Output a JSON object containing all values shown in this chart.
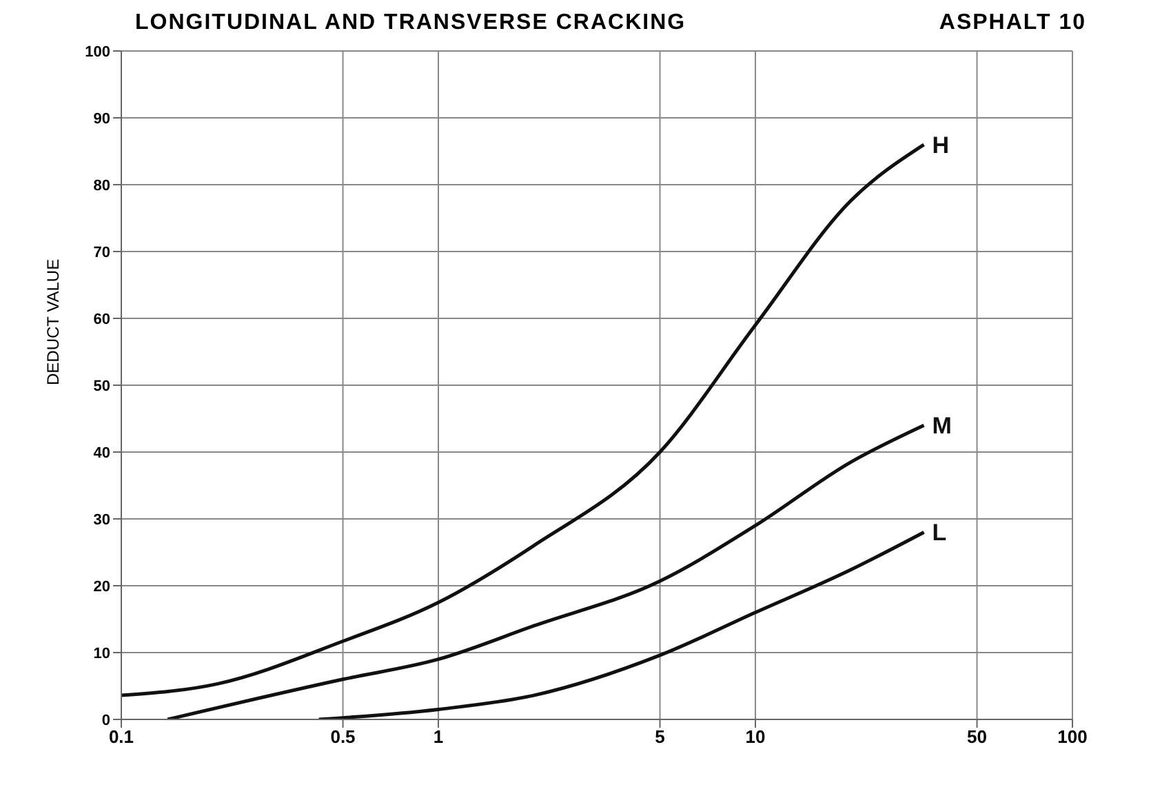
{
  "chart_data": {
    "type": "line",
    "title": "LONGITUDINAL AND TRANSVERSE CRACKING",
    "subtitle": "ASPHALT 10",
    "ylabel": "DEDUCT VALUE",
    "log": "x",
    "xlim": [
      0.1,
      100
    ],
    "xticks": [
      0.1,
      0.5,
      1,
      5,
      10,
      50,
      100
    ],
    "ylim": [
      0,
      100
    ],
    "yticks": [
      0,
      10,
      20,
      30,
      40,
      50,
      60,
      70,
      80,
      90,
      100
    ],
    "grid": true,
    "legend": false,
    "marker": "none",
    "line_style": "solid",
    "series": [
      {
        "name": "H",
        "color": "#111111",
        "x": [
          0.1,
          0.2,
          0.5,
          1,
          2,
          5,
          10,
          20,
          34
        ],
        "values": [
          3.6,
          5.3,
          11.7,
          17.5,
          26,
          40,
          59,
          77.6,
          86
        ]
      },
      {
        "name": "M",
        "color": "#111111",
        "x": [
          0.14,
          0.5,
          1,
          2,
          5,
          10,
          20,
          34
        ],
        "values": [
          0,
          6,
          9,
          14,
          20.7,
          29,
          38.5,
          44
        ]
      },
      {
        "name": "L",
        "color": "#111111",
        "x": [
          0.42,
          1,
          2,
          5,
          10,
          20,
          34
        ],
        "values": [
          0,
          1.5,
          3.6,
          9.6,
          16,
          22.4,
          28
        ]
      }
    ]
  }
}
